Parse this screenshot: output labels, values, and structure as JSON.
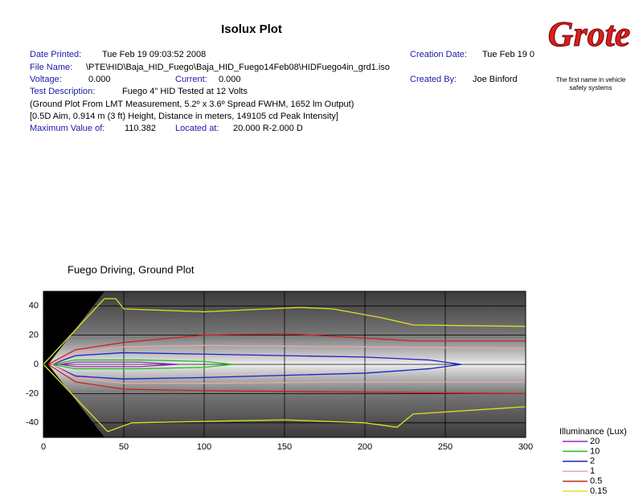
{
  "header": {
    "title": "Isolux Plot",
    "logo": "Grote",
    "tagline": [
      "The first name in vehicle",
      "safety systems"
    ],
    "date_printed": {
      "label": "Date Printed:",
      "value": "Tue Feb 19 09:03:52 2008"
    },
    "creation_date": {
      "label": "Creation Date:",
      "value": "Tue Feb 19 0"
    },
    "file_name": {
      "label": "File Name:",
      "value": "\\PTE\\HID\\Baja_HID_Fuego\\Baja_HID_Fuego14Feb08\\HIDFuego4in_grd1.iso"
    },
    "voltage": {
      "label": "Voltage:",
      "value": "0.000"
    },
    "current": {
      "label": "Current:",
      "value": "0.000"
    },
    "created_by": {
      "label": "Created By:",
      "value": "Joe Binford"
    },
    "test_description": {
      "label": "Test Description:",
      "value": "Fuego 4\" HID Tested at 12 Volts"
    },
    "notes": [
      "(Ground Plot From LMT Measurement, 5.2º x 3.6º Spread FWHM, 1652 lm Output)",
      "[0.5D Aim, 0.914 m (3 ft) Height, Distance in meters, 149105 cd Peak Intensity]"
    ],
    "maximum_value": {
      "label": "Maximum Value of:",
      "value": "110.382"
    },
    "located_at": {
      "label": "Located at:",
      "value": "20.000 R-2.000 D"
    }
  },
  "plot": {
    "title": "Fuego Driving, Ground Plot",
    "xlim": [
      0,
      300
    ],
    "ylim": [
      -50,
      50
    ],
    "xticks": [
      0,
      50,
      100,
      150,
      200,
      250,
      300
    ],
    "yticks": [
      40,
      20,
      0,
      -20,
      -40
    ],
    "legend": {
      "title": "Illuminance (Lux)",
      "entries": [
        {
          "level": 20,
          "color": "#a020c0"
        },
        {
          "level": 10,
          "color": "#22c022"
        },
        {
          "level": 2,
          "color": "#2020c8"
        },
        {
          "level": 1,
          "color": "#e8a8a8"
        },
        {
          "level": 0.5,
          "color": "#d02020"
        },
        {
          "level": 0.15,
          "color": "#e0e020"
        }
      ]
    }
  }
}
